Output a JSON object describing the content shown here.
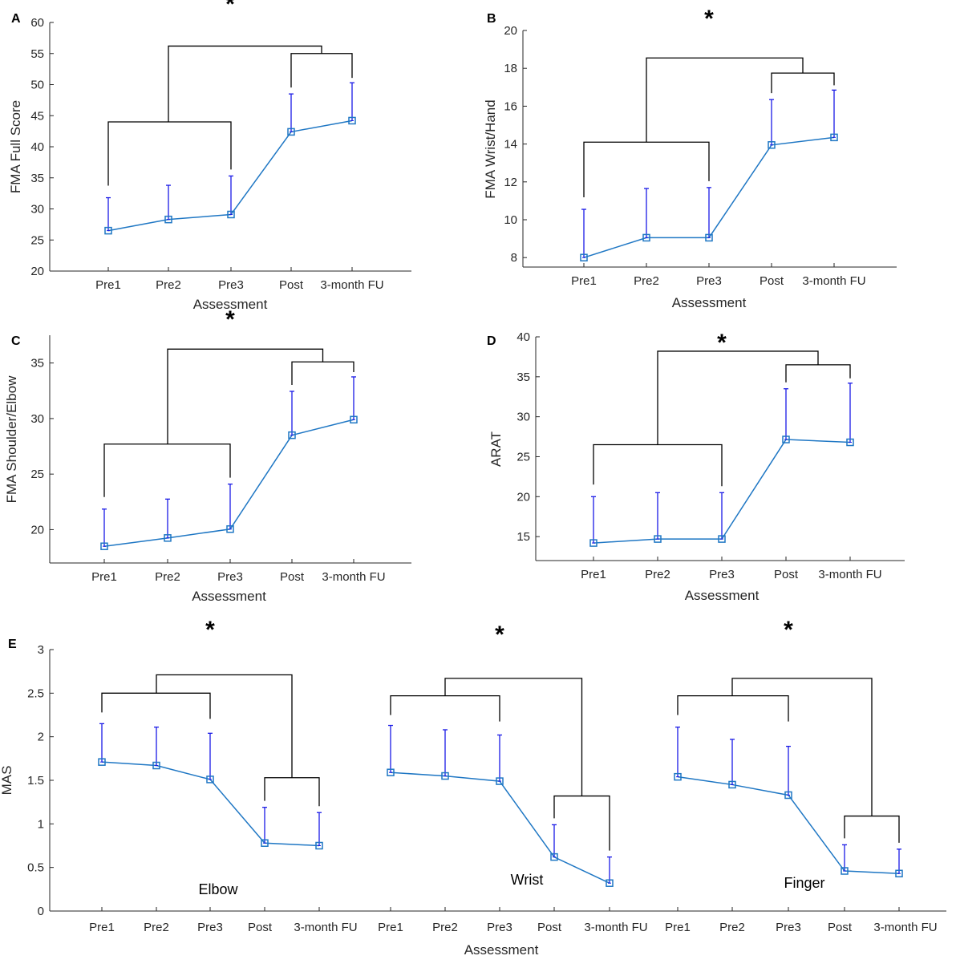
{
  "chart_data": [
    {
      "panel": "A",
      "type": "line",
      "categories": [
        "Pre1",
        "Pre2",
        "Pre3",
        "Post",
        "3-month FU"
      ],
      "values": [
        26.5,
        28.3,
        29.1,
        42.4,
        44.2
      ],
      "error_upper": [
        31.8,
        33.8,
        35.3,
        48.5,
        50.3
      ],
      "ylabel": "FMA Full Score",
      "xlabel": "Assessment",
      "ylim": [
        20,
        60
      ],
      "yticks": [
        20,
        25,
        30,
        35,
        40,
        45,
        50,
        55,
        60
      ],
      "significance": "*",
      "bracket_levels": {
        "pre": 44,
        "post": 55,
        "top": 56.2
      }
    },
    {
      "panel": "B",
      "type": "line",
      "categories": [
        "Pre1",
        "Pre2",
        "Pre3",
        "Post",
        "3-month FU"
      ],
      "values": [
        8.0,
        9.05,
        9.05,
        13.95,
        14.35
      ],
      "error_upper": [
        10.55,
        11.65,
        11.7,
        16.35,
        16.85
      ],
      "ylabel": "FMA Wrist/Hand",
      "xlabel": "Assessment",
      "ylim": [
        7.5,
        20
      ],
      "yticks": [
        8,
        10,
        12,
        14,
        16,
        18,
        20
      ],
      "significance": "*",
      "bracket_levels": {
        "pre": 14.1,
        "post": 17.75,
        "top": 18.55
      }
    },
    {
      "panel": "C",
      "type": "line",
      "categories": [
        "Pre1",
        "Pre2",
        "Pre3",
        "Post",
        "3-month FU"
      ],
      "values": [
        18.5,
        19.25,
        20.05,
        28.5,
        29.9
      ],
      "error_upper": [
        21.85,
        22.75,
        24.1,
        32.45,
        33.75
      ],
      "ylabel": "FMA Shoulder/Elbow",
      "xlabel": "Assessment",
      "ylim": [
        17,
        37.5
      ],
      "yticks": [
        20,
        25,
        30,
        35
      ],
      "significance": "*",
      "bracket_levels": {
        "pre": 27.7,
        "post": 35.1,
        "top": 36.25
      }
    },
    {
      "panel": "D",
      "type": "line",
      "categories": [
        "Pre1",
        "Pre2",
        "Pre3",
        "Post",
        "3-month FU"
      ],
      "values": [
        14.2,
        14.7,
        14.7,
        27.15,
        26.8
      ],
      "error_upper": [
        20.0,
        20.5,
        20.5,
        33.5,
        34.2
      ],
      "ylabel": "ARAT",
      "xlabel": "Assessment",
      "ylim": [
        12,
        40
      ],
      "yticks": [
        15,
        20,
        25,
        30,
        35,
        40
      ],
      "significance": "*",
      "bracket_levels": {
        "pre": 26.5,
        "post": 36.5,
        "top": 38.2
      }
    },
    {
      "panel": "E",
      "type": "line",
      "ylabel": "MAS",
      "xlabel": "Assessment",
      "ylim": [
        0,
        3
      ],
      "yticks": [
        0,
        0.5,
        1,
        1.5,
        2,
        2.5,
        3
      ],
      "categories": [
        "Pre1",
        "Pre2",
        "Pre3",
        "Post",
        "3-month FU"
      ],
      "subplots": [
        {
          "name": "Elbow",
          "values": [
            1.71,
            1.67,
            1.51,
            0.78,
            0.75
          ],
          "error_upper": [
            2.15,
            2.11,
            2.04,
            1.19,
            1.13
          ],
          "significance": "*",
          "bracket_levels": {
            "pre": 2.5,
            "post": 1.53,
            "top": 2.71
          }
        },
        {
          "name": "Wrist",
          "values": [
            1.59,
            1.55,
            1.49,
            0.62,
            0.32
          ],
          "error_upper": [
            2.13,
            2.08,
            2.02,
            0.99,
            0.62
          ],
          "significance": "*",
          "bracket_levels": {
            "pre": 2.47,
            "post": 1.32,
            "top": 2.67
          }
        },
        {
          "name": "Finger",
          "values": [
            1.54,
            1.45,
            1.33,
            0.46,
            0.43
          ],
          "error_upper": [
            2.11,
            1.97,
            1.89,
            0.76,
            0.71
          ],
          "significance": "*",
          "bracket_levels": {
            "pre": 2.47,
            "post": 1.09,
            "top": 2.67
          }
        }
      ]
    }
  ],
  "colors": {
    "line": "#1f77c4",
    "errorbar": "#1a1ae6",
    "bracket": "#000000",
    "axis": "#262626"
  }
}
